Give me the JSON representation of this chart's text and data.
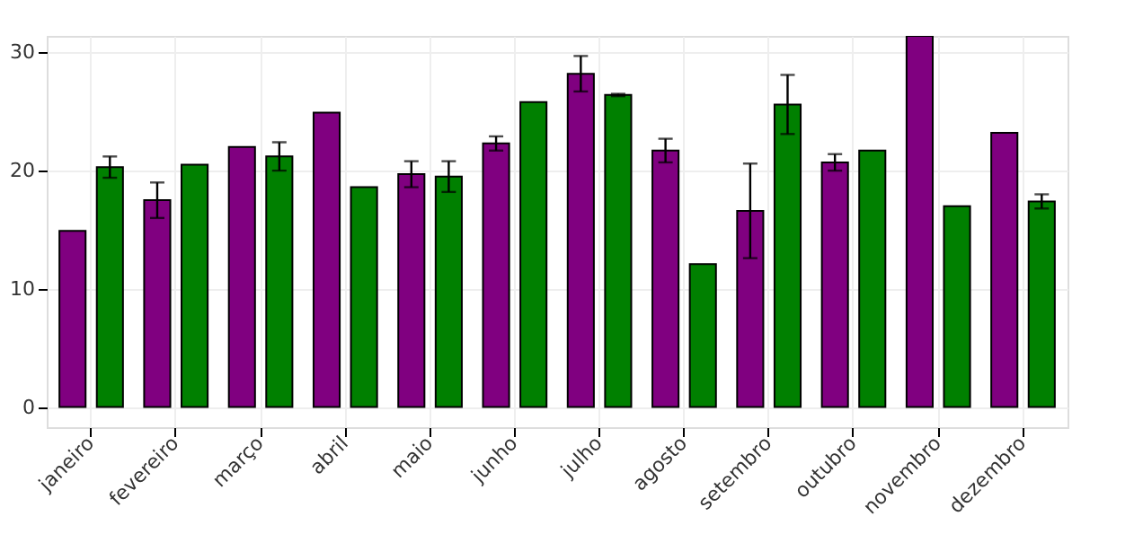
{
  "chart_data": {
    "type": "bar",
    "categories": [
      "janeiro",
      "fevereiro",
      "março",
      "abril",
      "maio",
      "junho",
      "julho",
      "agosto",
      "setembro",
      "outubro",
      "novembro",
      "dezembro"
    ],
    "series": [
      {
        "color": "#800080",
        "values": [
          14.9,
          17.5,
          22.0,
          24.9,
          19.7,
          22.3,
          28.2,
          21.7,
          16.6,
          20.7,
          31.4,
          23.2
        ],
        "errors": [
          null,
          1.5,
          null,
          null,
          1.1,
          0.6,
          1.5,
          1.0,
          4.0,
          0.7,
          null,
          null
        ]
      },
      {
        "color": "#008000",
        "values": [
          20.3,
          20.5,
          21.2,
          18.6,
          19.5,
          25.8,
          26.4,
          12.1,
          25.6,
          21.7,
          17.0,
          17.4
        ],
        "errors": [
          0.9,
          null,
          1.2,
          null,
          1.3,
          null,
          0.1,
          null,
          2.5,
          null,
          null,
          0.6
        ]
      }
    ],
    "ylim": [
      -1.7,
      31.4
    ],
    "yticks": [
      0,
      10,
      20,
      30
    ],
    "grid": true,
    "legend": false
  }
}
